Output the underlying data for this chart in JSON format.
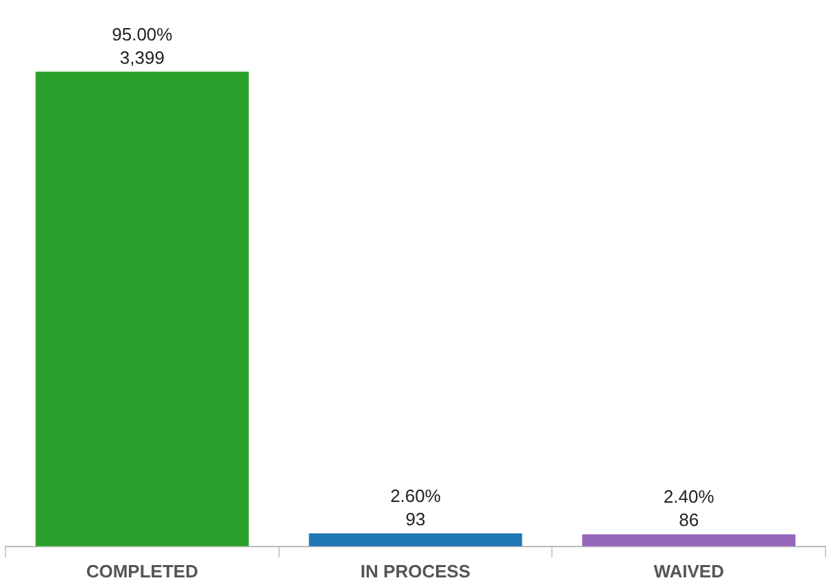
{
  "chart_data": {
    "type": "bar",
    "categories": [
      "COMPLETED",
      "IN PROCESS",
      "WAIVED"
    ],
    "values": [
      3399,
      93,
      86
    ],
    "colors": [
      "#2ca02c",
      "#1f77b4",
      "#9467bd"
    ],
    "value_labels": [
      "95.00%\n3,399",
      "2.60%\n93",
      "2.40%\n86"
    ],
    "grid": false,
    "legend": false
  }
}
